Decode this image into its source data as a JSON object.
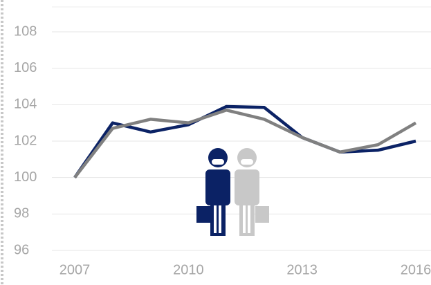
{
  "chart_data": {
    "type": "line",
    "x": [
      2007,
      2008,
      2009,
      2010,
      2011,
      2012,
      2013,
      2014,
      2015,
      2016
    ],
    "series": [
      {
        "color": "#0b2265",
        "values": [
          100,
          103.0,
          102.5,
          102.9,
          103.9,
          103.85,
          102.2,
          101.4,
          101.5,
          102.0
        ]
      },
      {
        "color": "#808080",
        "values": [
          100,
          102.7,
          103.2,
          103.0,
          103.7,
          103.2,
          102.2,
          101.4,
          101.8,
          103.0
        ]
      }
    ],
    "xlim": [
      2007,
      2016
    ],
    "xticks": [
      2007,
      2010,
      2013,
      2016
    ],
    "ylim": [
      96,
      108
    ],
    "yticks": [
      96,
      98,
      100,
      102,
      104,
      106,
      108
    ],
    "grid": true
  }
}
